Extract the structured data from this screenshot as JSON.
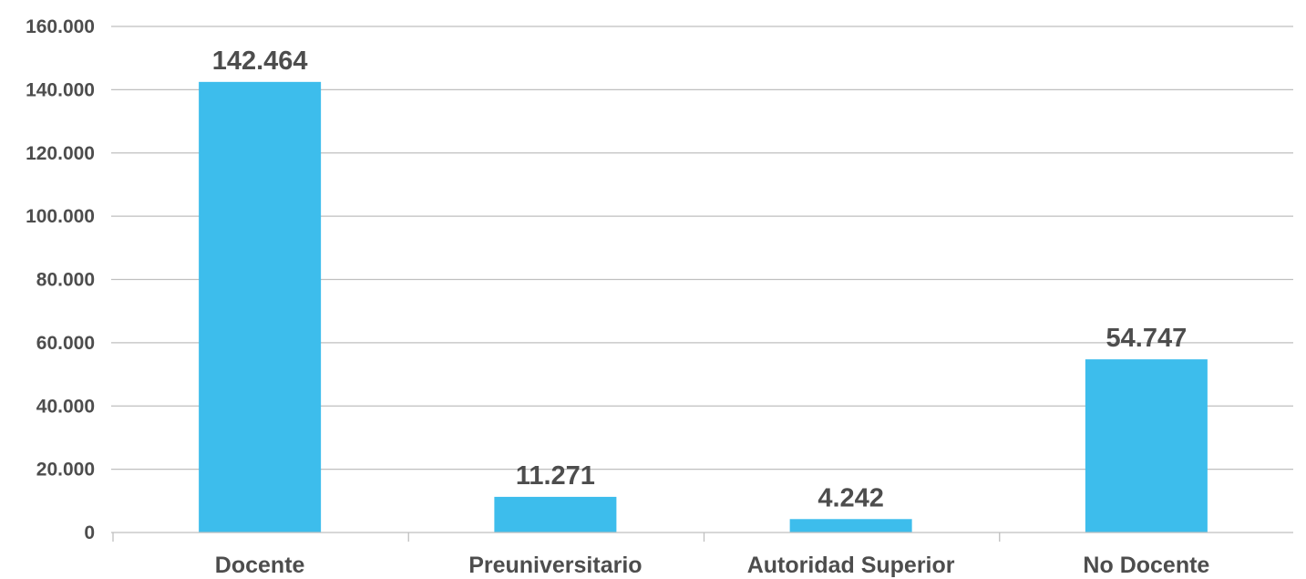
{
  "chart_data": {
    "type": "bar",
    "categories": [
      "Docente",
      "Preuniversitario",
      "Autoridad Superior",
      "No Docente"
    ],
    "values": [
      142464,
      11271,
      4242,
      54747
    ],
    "data_labels": [
      "142.464",
      "11.271",
      "4.242",
      "54.747"
    ],
    "y_tick_values": [
      0,
      20000,
      40000,
      60000,
      80000,
      100000,
      120000,
      140000,
      160000
    ],
    "y_tick_labels": [
      "0",
      "20.000",
      "40.000",
      "60.000",
      "80.000",
      "100.000",
      "120.000",
      "140.000",
      "160.000"
    ],
    "ylim": [
      0,
      160000
    ],
    "grid": true,
    "legend": "none",
    "colors": {
      "bar": "#3dbdec",
      "gridline": "#bfbfbf",
      "text": "#4d4d4d"
    }
  }
}
